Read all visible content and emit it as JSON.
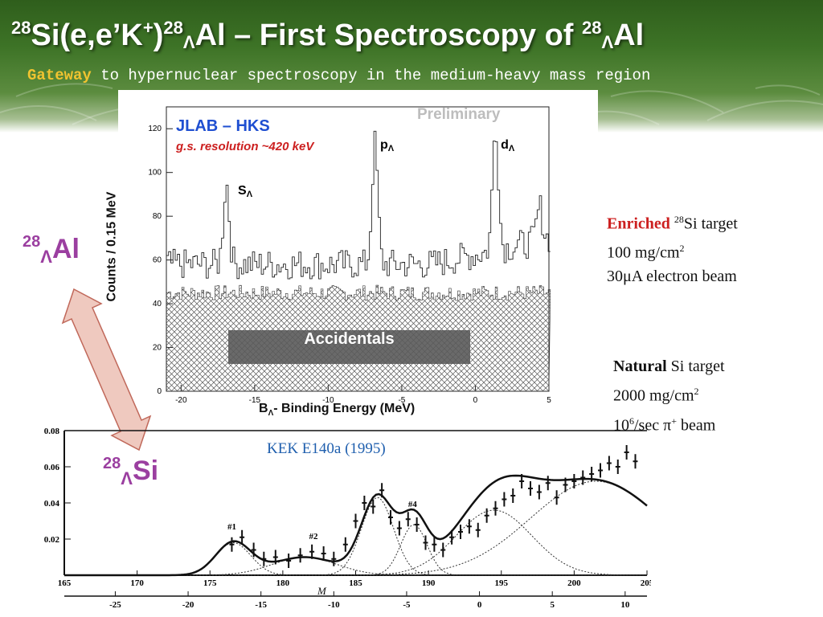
{
  "header": {
    "title_parts": [
      "28",
      "Si(e,e’K",
      "+",
      ")",
      "28",
      "Λ",
      "Al – First Spectroscopy of ",
      "28",
      "Λ",
      "Al"
    ],
    "subtitle_highlight": "Gateway",
    "subtitle_rest": " to hypernuclear spectroscopy in the medium-heavy mass region"
  },
  "colors": {
    "gateway": "#f0c330",
    "accent_red": "#cc1f1f",
    "lambda_magenta": "#9b3fa0",
    "hks_blue": "#1f4fd1",
    "kek_blue": "#1f5fae",
    "arrow_fill": "#efc9bf"
  },
  "labels": {
    "al_mass": "28",
    "al_lambda": "Λ",
    "al_elem": "Al",
    "si_mass": "28",
    "si_lambda": "Λ",
    "si_elem": "Si"
  },
  "enriched": {
    "word": "Enriched",
    "mass": "28",
    "target": "Si target",
    "density": "100 mg/cm",
    "density_exp": "2",
    "beam": "30μA electron beam"
  },
  "natural": {
    "word": "Natural",
    "target": " Si target",
    "density": "2000 mg/cm",
    "density_exp": "2",
    "rate": "10",
    "rate_exp": "6",
    "rate_rest": "/sec π",
    "pion_sign": "+",
    "beam": "  beam"
  },
  "chart_data": [
    {
      "type": "bar",
      "title": "JLAB – HKS",
      "subtitle": "g.s. resolution ~420 keV",
      "watermark": "Preliminary",
      "xlabel_parts": [
        "B",
        "Λ",
        "- Binding Energy (MeV)"
      ],
      "ylabel": "Counts / 0.15 MeV",
      "xlim": [
        -21,
        5
      ],
      "ylim": [
        0,
        130
      ],
      "xticks": [
        -20,
        -15,
        -10,
        -5,
        0,
        5
      ],
      "yticks": [
        0,
        20,
        40,
        60,
        80,
        100,
        120
      ],
      "annotations": [
        {
          "letter": "s",
          "sub": "Λ",
          "x": -16.9
        },
        {
          "letter": "p",
          "sub": "Λ",
          "x": -6.8
        },
        {
          "letter": "d",
          "sub": "Λ",
          "x": 1.4
        }
      ],
      "band_label": "Accidentals",
      "accidentals_level": 45,
      "peaks": [
        {
          "x": -17.0,
          "height": 92
        },
        {
          "x": -6.9,
          "height": 110
        },
        {
          "x": 1.3,
          "height": 112
        },
        {
          "x": 4.3,
          "height": 70
        }
      ],
      "grid": false
    },
    {
      "type": "scatter",
      "title": "KEK E140a (1995)",
      "xlabel": "M",
      "xlim": [
        165,
        205
      ],
      "ylim": [
        0,
        0.08
      ],
      "xticks": [
        165,
        170,
        175,
        180,
        185,
        190,
        195,
        200,
        205
      ],
      "xticks2": [
        -25,
        -20,
        -15,
        -10,
        -5,
        0,
        5,
        10
      ],
      "yticks": [
        "0.02",
        "0.04",
        "0.06",
        "0.08"
      ],
      "peak_labels": [
        {
          "text": "#1",
          "x": 176.2
        },
        {
          "text": "#2",
          "x": 181.8
        },
        {
          "text": "#4",
          "x": 188.6
        }
      ],
      "points": [
        [
          176.5,
          0.017
        ],
        [
          177.2,
          0.021
        ],
        [
          178.0,
          0.014
        ],
        [
          178.7,
          0.009
        ],
        [
          179.5,
          0.01
        ],
        [
          180.4,
          0.008
        ],
        [
          181.2,
          0.011
        ],
        [
          182.0,
          0.013
        ],
        [
          182.8,
          0.012
        ],
        [
          183.5,
          0.009
        ],
        [
          184.3,
          0.017
        ],
        [
          185.0,
          0.03
        ],
        [
          185.6,
          0.04
        ],
        [
          186.2,
          0.038
        ],
        [
          186.8,
          0.047
        ],
        [
          187.4,
          0.032
        ],
        [
          188.0,
          0.026
        ],
        [
          188.6,
          0.031
        ],
        [
          189.2,
          0.028
        ],
        [
          189.8,
          0.018
        ],
        [
          190.4,
          0.017
        ],
        [
          191.0,
          0.014
        ],
        [
          191.6,
          0.021
        ],
        [
          192.2,
          0.024
        ],
        [
          192.8,
          0.027
        ],
        [
          193.4,
          0.025
        ],
        [
          194.0,
          0.033
        ],
        [
          194.6,
          0.037
        ],
        [
          195.2,
          0.042
        ],
        [
          195.8,
          0.044
        ],
        [
          196.4,
          0.052
        ],
        [
          197.0,
          0.048
        ],
        [
          197.6,
          0.046
        ],
        [
          198.2,
          0.051
        ],
        [
          198.8,
          0.043
        ],
        [
          199.4,
          0.05
        ],
        [
          200.0,
          0.052
        ],
        [
          200.6,
          0.054
        ],
        [
          201.2,
          0.056
        ],
        [
          201.8,
          0.058
        ],
        [
          202.4,
          0.062
        ],
        [
          203.0,
          0.06
        ],
        [
          203.6,
          0.068
        ],
        [
          204.2,
          0.063
        ]
      ]
    }
  ]
}
